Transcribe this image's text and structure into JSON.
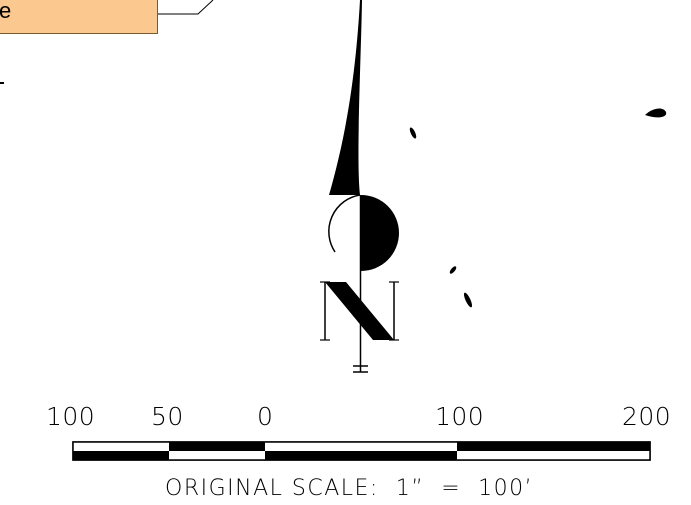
{
  "callout": {
    "text": "e"
  },
  "scale_bar": {
    "labels": [
      "100",
      "50",
      "0",
      "100",
      "200"
    ],
    "caption": "ORIGINAL SCALE:  1”  =  100’"
  },
  "colors": {
    "callout_fill": "#fbc98f",
    "ink": "#000000"
  }
}
